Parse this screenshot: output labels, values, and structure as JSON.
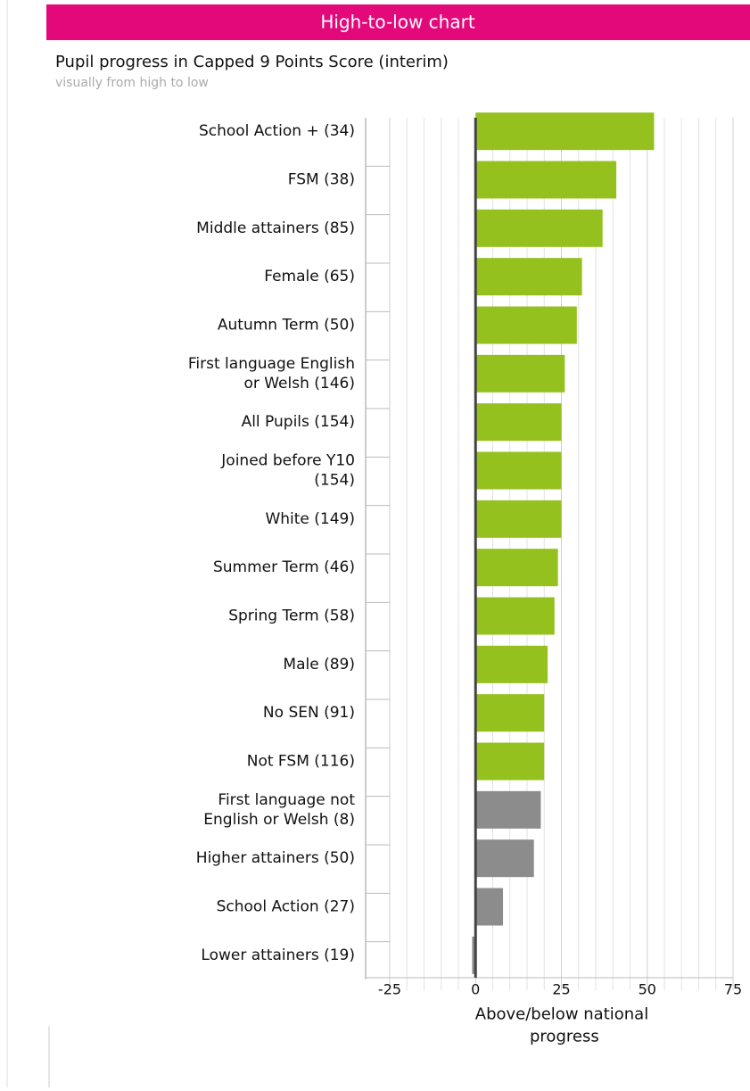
{
  "chart_data": {
    "type": "barh",
    "title": "High-to-low chart",
    "subtitle": "Pupil progress in Capped 9 Points Score (interim)",
    "note": "visually from high to low",
    "x_label": "Above/below national progress",
    "categories": [
      "School Action + (34)",
      "FSM (38)",
      "Middle attainers (85)",
      "Female (65)",
      "Autumn Term (50)",
      "First language English or Welsh (146)",
      "All Pupils (154)",
      "Joined before Y10 (154)",
      "White (149)",
      "Summer Term (46)",
      "Spring Term (58)",
      "Male (89)",
      "No SEN (91)",
      "Not FSM (116)",
      "First language not English or Welsh (8)",
      "Higher attainers (50)",
      "School Action (27)",
      "Lower attainers (19)"
    ],
    "values": [
      52,
      41,
      37,
      31,
      29.5,
      26,
      25,
      25,
      25,
      24,
      23,
      21,
      20,
      20,
      19,
      17,
      8,
      -1
    ],
    "colors": [
      "#95c11f",
      "#95c11f",
      "#95c11f",
      "#95c11f",
      "#95c11f",
      "#95c11f",
      "#95c11f",
      "#95c11f",
      "#95c11f",
      "#95c11f",
      "#95c11f",
      "#95c11f",
      "#95c11f",
      "#95c11f",
      "#8c8c8c",
      "#8c8c8c",
      "#8c8c8c",
      "#8c8c8c"
    ],
    "xlim": [
      -25,
      75
    ],
    "xticks": [
      -25,
      0,
      25,
      50,
      75
    ],
    "minor_xticks": [
      -20,
      -15,
      -10,
      -5,
      5,
      10,
      15,
      20,
      30,
      35,
      40,
      45,
      55,
      60,
      65,
      70
    ],
    "grid": true
  }
}
